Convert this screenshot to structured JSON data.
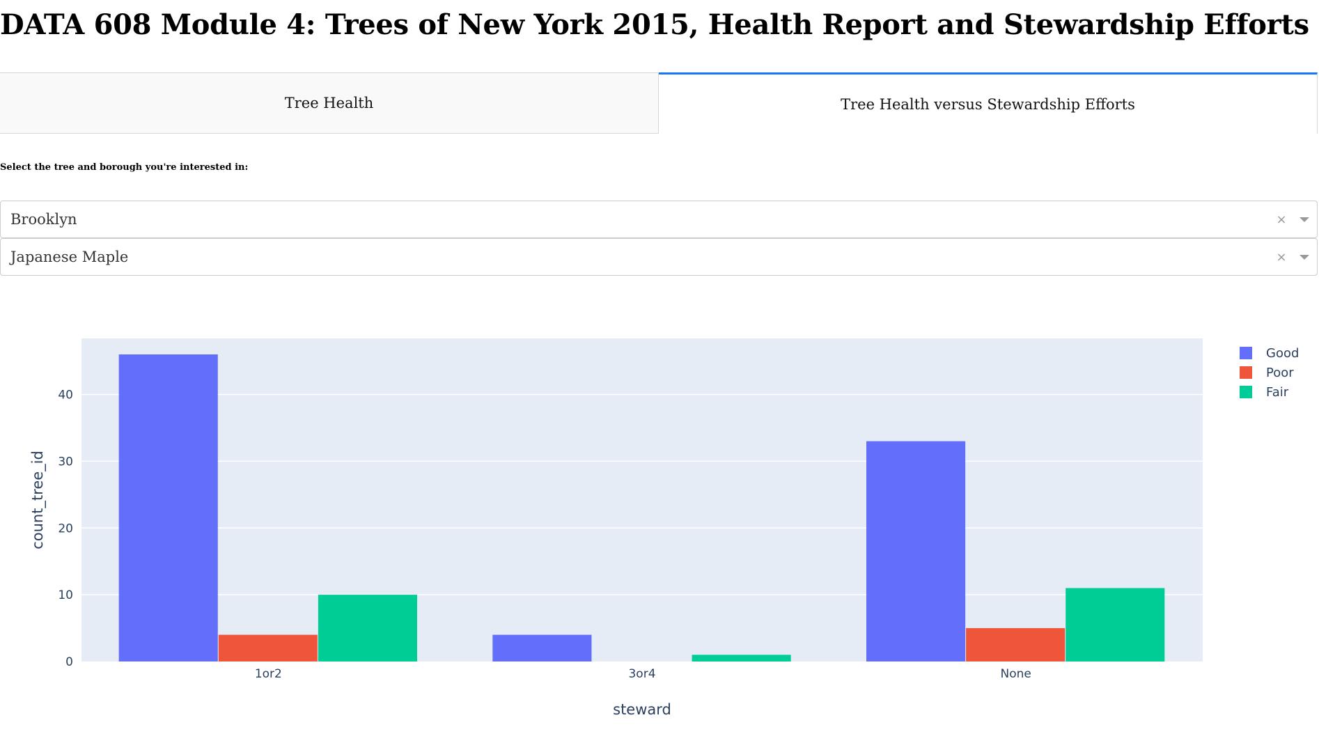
{
  "page": {
    "title": "DATA 608 Module 4: Trees of New York 2015, Health Report and Stewardship Efforts"
  },
  "tabs": [
    {
      "label": "Tree Health",
      "active": false
    },
    {
      "label": "Tree Health versus Stewardship Efforts",
      "active": true
    }
  ],
  "filters": {
    "label": "Select the tree and borough you're interested in:",
    "borough": {
      "value": "Brooklyn",
      "clear_icon": "close-icon",
      "arrow_icon": "chevron-down-icon"
    },
    "tree": {
      "value": "Japanese Maple",
      "clear_icon": "close-icon",
      "arrow_icon": "chevron-down-icon"
    }
  },
  "colors": {
    "plot_bg": "#e5ecf6",
    "grid": "#ffffff",
    "tab_accent": "#1975fa",
    "Good": "#636efa",
    "Poor": "#ef553b",
    "Fair": "#00cc96"
  },
  "chart_data": {
    "type": "bar",
    "barmode": "group",
    "categories": [
      "1or2",
      "3or4",
      "None"
    ],
    "series": [
      {
        "name": "Good",
        "values": [
          46,
          4,
          33
        ]
      },
      {
        "name": "Poor",
        "values": [
          4,
          0,
          5
        ]
      },
      {
        "name": "Fair",
        "values": [
          10,
          1,
          11
        ]
      }
    ],
    "xlabel": "steward",
    "ylabel": "count_tree_id",
    "ylim": [
      0,
      48.4
    ],
    "yticks": [
      0,
      10,
      20,
      30,
      40
    ],
    "grid": true,
    "legend_position": "top-right"
  }
}
